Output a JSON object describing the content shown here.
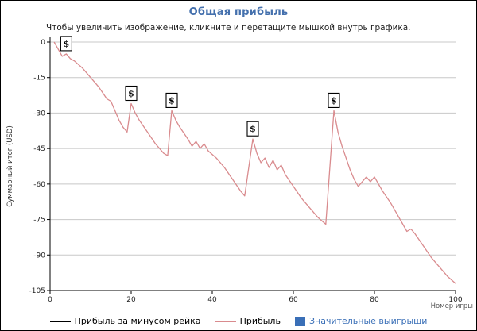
{
  "header": {
    "title": "Общая прибыль",
    "title_color": "#4470AD",
    "subtitle": "Чтобы увеличить изображение, кликните и перетащите мышкой внутрь графика."
  },
  "legend": {
    "items": [
      {
        "label": "Прибыль за минусом рейка",
        "swatch": "line",
        "color": "#000000",
        "text_color": "#000000"
      },
      {
        "label": "Прибыль",
        "swatch": "line",
        "color": "#D98B8E",
        "text_color": "#000000"
      },
      {
        "label": "Значительные выигрыши",
        "swatch": "box",
        "color": "#3A6FB7",
        "text_color": "#3A6FB7"
      }
    ]
  },
  "chart_data": {
    "type": "line",
    "title": "Общая прибыль",
    "subtitle": "Чтобы увеличить изображение, кликните и перетащите мышкой внутрь графика.",
    "xlabel": "Номер игры",
    "ylabel": "Суммарный итог (USD)",
    "xlim": [
      0,
      100
    ],
    "ylim": [
      -105,
      0
    ],
    "xticks": [
      0,
      20,
      40,
      60,
      80,
      100
    ],
    "yticks": [
      0,
      -15,
      -30,
      -45,
      -60,
      -75,
      -90,
      -105
    ],
    "grid": "horizontal",
    "grid_color": "#C8C8C8",
    "axis_color": "#000000",
    "tick_label_color": "#222222",
    "axis_label_color": "#555555",
    "legend_position": "bottom",
    "series": [
      {
        "name": "Прибыль",
        "color": "#D98B8E",
        "points": [
          [
            1,
            0
          ],
          [
            2,
            -3
          ],
          [
            3,
            -6
          ],
          [
            4,
            -5
          ],
          [
            5,
            -7
          ],
          [
            6,
            -8
          ],
          [
            8,
            -11
          ],
          [
            10,
            -15
          ],
          [
            12,
            -19
          ],
          [
            14,
            -24
          ],
          [
            15,
            -25
          ],
          [
            16,
            -29
          ],
          [
            17,
            -33
          ],
          [
            18,
            -36
          ],
          [
            19,
            -38
          ],
          [
            20,
            -26
          ],
          [
            21,
            -30
          ],
          [
            22,
            -33
          ],
          [
            24,
            -38
          ],
          [
            26,
            -43
          ],
          [
            28,
            -47
          ],
          [
            29,
            -48
          ],
          [
            30,
            -29
          ],
          [
            31,
            -33
          ],
          [
            32,
            -36
          ],
          [
            34,
            -41
          ],
          [
            35,
            -44
          ],
          [
            36,
            -42
          ],
          [
            37,
            -45
          ],
          [
            38,
            -43
          ],
          [
            39,
            -46
          ],
          [
            41,
            -49
          ],
          [
            43,
            -53
          ],
          [
            45,
            -58
          ],
          [
            47,
            -63
          ],
          [
            48,
            -65
          ],
          [
            50,
            -41
          ],
          [
            51,
            -47
          ],
          [
            52,
            -51
          ],
          [
            53,
            -49
          ],
          [
            54,
            -53
          ],
          [
            55,
            -50
          ],
          [
            56,
            -54
          ],
          [
            57,
            -52
          ],
          [
            58,
            -56
          ],
          [
            60,
            -61
          ],
          [
            62,
            -66
          ],
          [
            64,
            -70
          ],
          [
            66,
            -74
          ],
          [
            68,
            -77
          ],
          [
            70,
            -29
          ],
          [
            71,
            -38
          ],
          [
            72,
            -44
          ],
          [
            73,
            -49
          ],
          [
            74,
            -54
          ],
          [
            75,
            -58
          ],
          [
            76,
            -61
          ],
          [
            77,
            -59
          ],
          [
            78,
            -57
          ],
          [
            79,
            -59
          ],
          [
            80,
            -57
          ],
          [
            81,
            -60
          ],
          [
            82,
            -63
          ],
          [
            84,
            -68
          ],
          [
            86,
            -74
          ],
          [
            87,
            -77
          ],
          [
            88,
            -80
          ],
          [
            89,
            -79
          ],
          [
            90,
            -81
          ],
          [
            92,
            -86
          ],
          [
            94,
            -91
          ],
          [
            96,
            -95
          ],
          [
            98,
            -99
          ],
          [
            100,
            -102
          ]
        ]
      }
    ],
    "significant_wins": {
      "label": "Значительные выигрыши",
      "marker": "$",
      "points": [
        [
          4,
          -5
        ],
        [
          20,
          -26
        ],
        [
          30,
          -29
        ],
        [
          50,
          -41
        ],
        [
          70,
          -29
        ]
      ]
    }
  }
}
